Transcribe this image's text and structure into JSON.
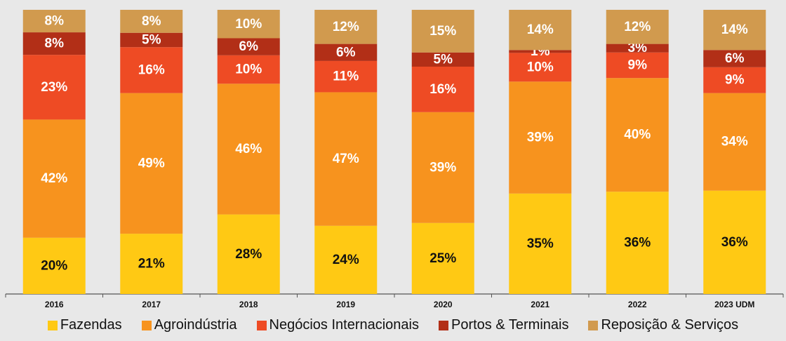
{
  "chart_data": {
    "type": "bar",
    "stacked": true,
    "normalized": true,
    "categories": [
      "2016",
      "2017",
      "2018",
      "2019",
      "2020",
      "2021",
      "2022",
      "2023 UDM"
    ],
    "series": [
      {
        "name": "Fazendas",
        "color": "#FFC914",
        "label_color": "#111111",
        "values": [
          20,
          21,
          28,
          24,
          25,
          35,
          36,
          36
        ]
      },
      {
        "name": "Agroindústria",
        "color": "#F7931E",
        "label_color": "#FFFFFF",
        "values": [
          42,
          49,
          46,
          47,
          39,
          39,
          40,
          34
        ]
      },
      {
        "name": "Negócios Internacionais",
        "color": "#EE4B24",
        "label_color": "#FFFFFF",
        "values": [
          23,
          16,
          10,
          11,
          16,
          10,
          9,
          9
        ]
      },
      {
        "name": "Portos & Terminais",
        "color": "#B22F17",
        "label_color": "#FFFFFF",
        "values": [
          8,
          5,
          6,
          6,
          5,
          1,
          3,
          6
        ]
      },
      {
        "name": "Reposição & Serviços",
        "color": "#D19A4E",
        "label_color": "#FFFFFF",
        "values": [
          8,
          8,
          10,
          12,
          15,
          14,
          12,
          14
        ]
      }
    ],
    "value_suffix": "%",
    "ylim": [
      0,
      100
    ],
    "grid": false,
    "legend_placement": "bottom"
  }
}
